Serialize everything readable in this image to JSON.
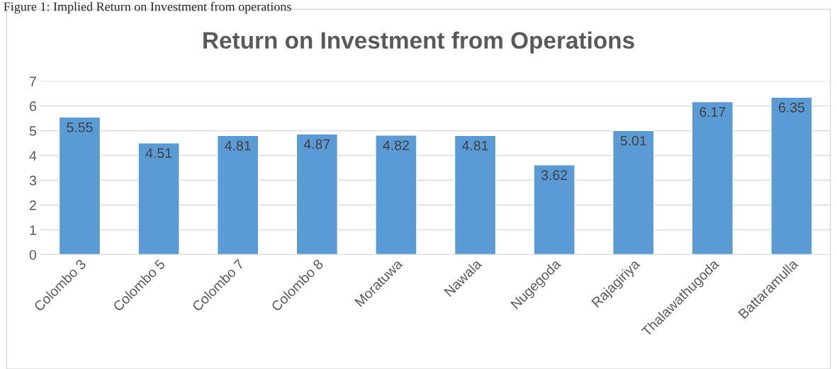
{
  "chart_data": {
    "type": "bar",
    "title": "Return on Investment from Operations",
    "annotations": [
      "Figure 1: Implied Return on Investment from operations"
    ],
    "categories": [
      "Colombo 3",
      "Colombo 5",
      "Colombo 7",
      "Colombo 8",
      "Moratuwa",
      "Nawala",
      "Nugegoda",
      "Rajagiriya",
      "Thalawathugoda",
      "Battaramulla"
    ],
    "values": [
      5.55,
      4.51,
      4.81,
      4.87,
      4.82,
      4.81,
      3.62,
      5.01,
      6.17,
      6.35
    ],
    "color": "#5b9bd5",
    "ylim": [
      0,
      7
    ],
    "yticks": [
      0,
      1,
      2,
      3,
      4,
      5,
      6,
      7
    ],
    "grid": "y",
    "data_labels": true,
    "legend": false
  }
}
